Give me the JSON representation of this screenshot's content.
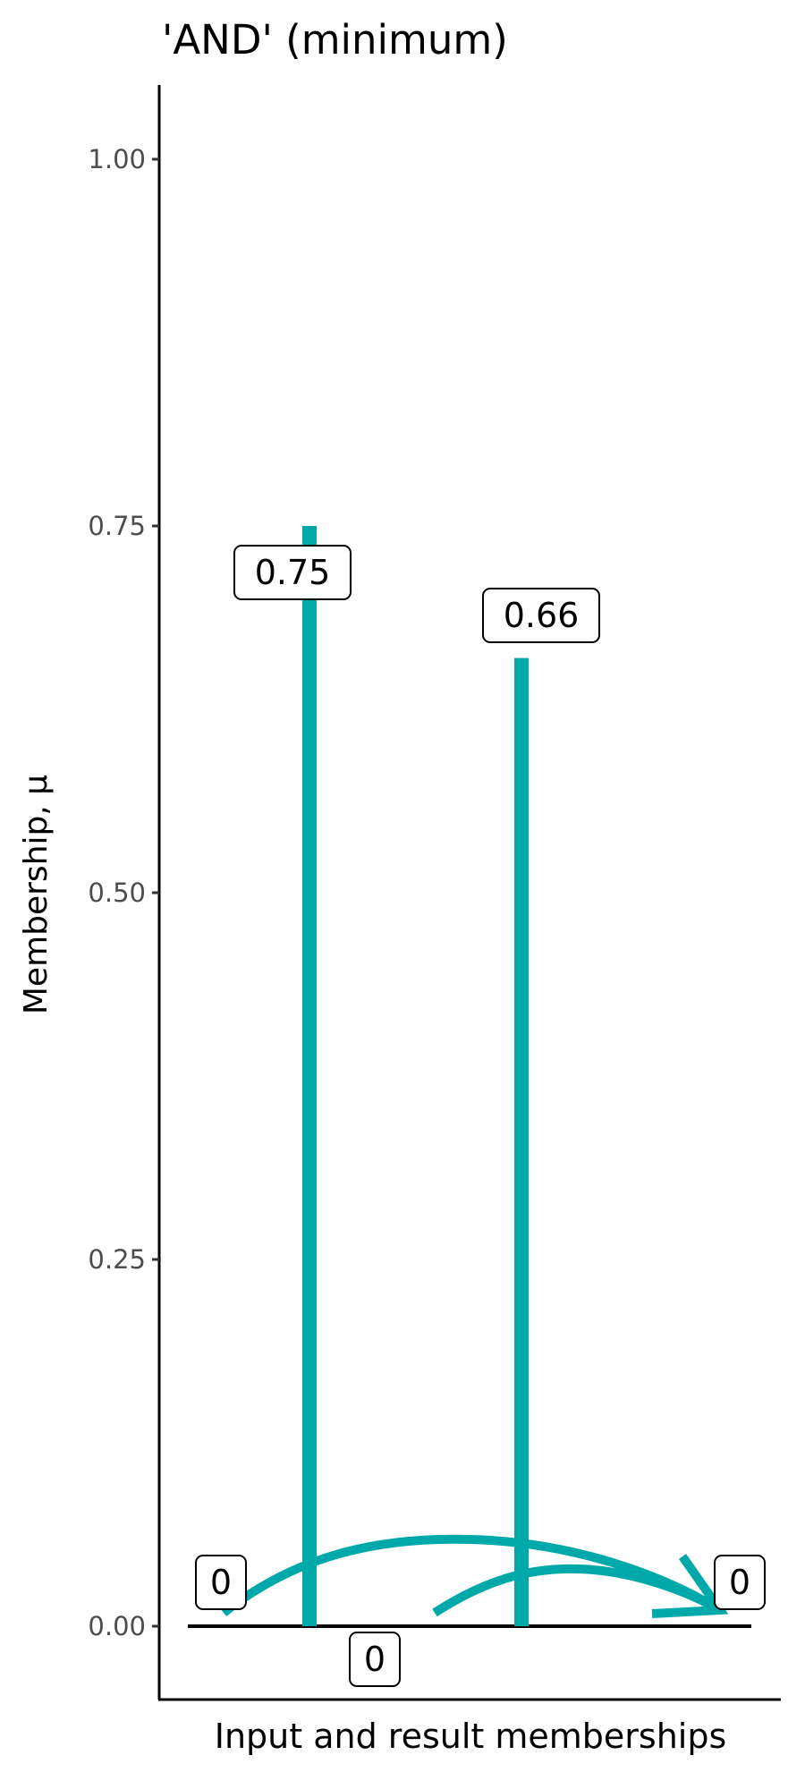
{
  "chart_data": {
    "type": "bar",
    "title": "'AND' (minimum)",
    "xlabel": "Input and result memberships",
    "ylabel": "Membership, μ",
    "ylim": [
      -0.05,
      1.05
    ],
    "yticks": [
      "0.00",
      "0.25",
      "0.50",
      "0.75",
      "1.00"
    ],
    "ytick_values": [
      0,
      0.25,
      0.5,
      0.75,
      1.0
    ],
    "grid": false,
    "bars": [
      {
        "value": 0.75,
        "label": "0.75"
      },
      {
        "value": 0.66,
        "label": "0.66"
      }
    ],
    "zero_labels": [
      "0",
      "0",
      "0"
    ],
    "colors": {
      "bar": "#00A9A9",
      "axis": "#000000"
    }
  }
}
